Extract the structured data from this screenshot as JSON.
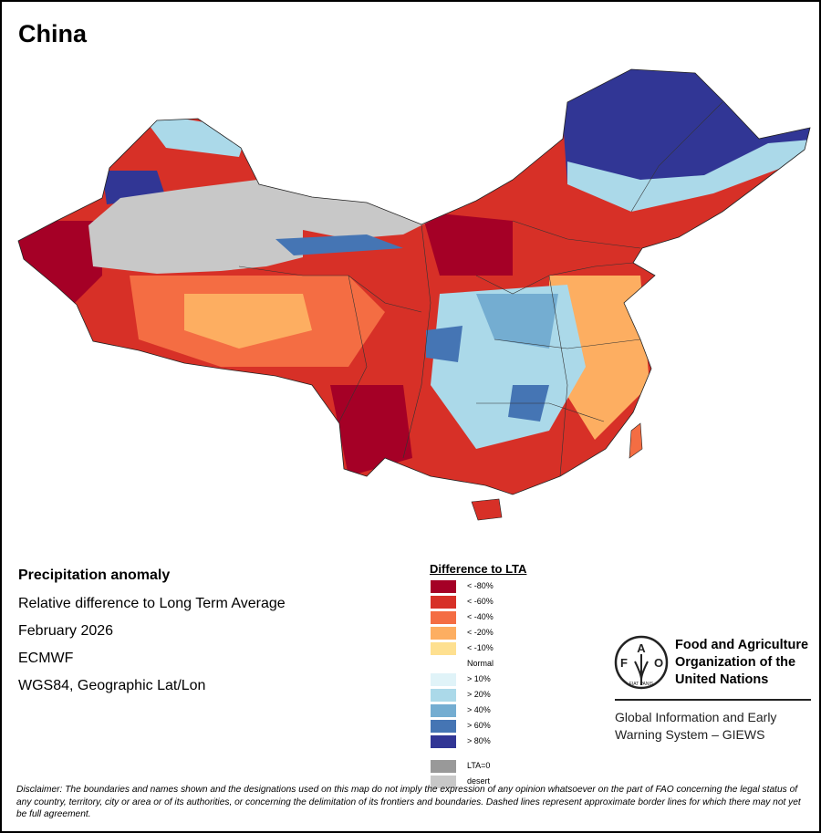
{
  "title": "China",
  "info": {
    "heading": "Precipitation anomaly",
    "subtitle": "Relative difference to Long Term Average",
    "period": "February 2026",
    "source": "ECMWF",
    "projection": "WGS84, Geographic Lat/Lon"
  },
  "legend": {
    "title": "Difference to LTA",
    "items": [
      {
        "label": "< -80%",
        "color": "#a50026"
      },
      {
        "label": "< -60%",
        "color": "#d73027"
      },
      {
        "label": "< -40%",
        "color": "#f46d43"
      },
      {
        "label": "< -20%",
        "color": "#fdae61"
      },
      {
        "label": "< -10%",
        "color": "#fee090"
      },
      {
        "label": "Normal",
        "color": "#ffffff"
      },
      {
        "label": "> 10%",
        "color": "#e0f3f8"
      },
      {
        "label": "> 20%",
        "color": "#abd9e9"
      },
      {
        "label": "> 40%",
        "color": "#74add1"
      },
      {
        "label": "> 60%",
        "color": "#4575b4"
      },
      {
        "label": "> 80%",
        "color": "#313695"
      },
      {
        "label": "LTA=0",
        "color": "#999999"
      },
      {
        "label": "desert",
        "color": "#c8c8c8"
      }
    ]
  },
  "fao": {
    "logo_letters": "FAO FIAT PANIS",
    "name_line1": "Food and Agriculture",
    "name_line2": "Organization of the",
    "name_line3": "United Nations",
    "giews_line1": "Global Information and Early",
    "giews_line2": "Warning System – GIEWS"
  },
  "disclaimer": "Disclaimer: The boundaries and names shown and the designations used on this map do not imply the expression of any opinion whatsoever on the part of FAO concerning the legal status of any country, territory, city or area or of its authorities, or concerning the delimitation of its frontiers and boundaries. Dashed lines represent approximate border lines for which there may not yet be full agreement."
}
